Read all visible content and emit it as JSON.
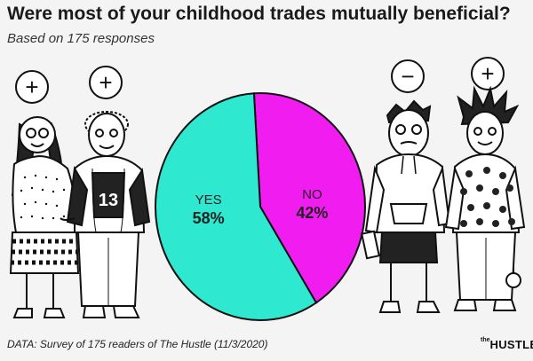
{
  "title": "Were most of your childhood trades mutually beneficial?",
  "subtitle": "Based on 175 responses",
  "footer": "DATA: Survey of 175 readers of The Hustle (11/3/2020)",
  "brand": {
    "prefix": "the",
    "name": "HUSTLE"
  },
  "colors": {
    "yes": "#2ee8d0",
    "no": "#f01cf0",
    "outline": "#111111"
  },
  "illustrations": {
    "left_pair_badges": [
      "+",
      "+"
    ],
    "right_pair_badges": [
      "−",
      "+"
    ],
    "jersey_number": "13"
  },
  "chart_data": {
    "type": "pie",
    "title": "Were most of your childhood trades mutually beneficial?",
    "subtitle": "Based on 175 responses",
    "slices": [
      {
        "label": "YES",
        "value": 58,
        "display": "58%",
        "color": "#2ee8d0"
      },
      {
        "label": "NO",
        "value": 42,
        "display": "42%",
        "color": "#f01cf0"
      }
    ]
  }
}
